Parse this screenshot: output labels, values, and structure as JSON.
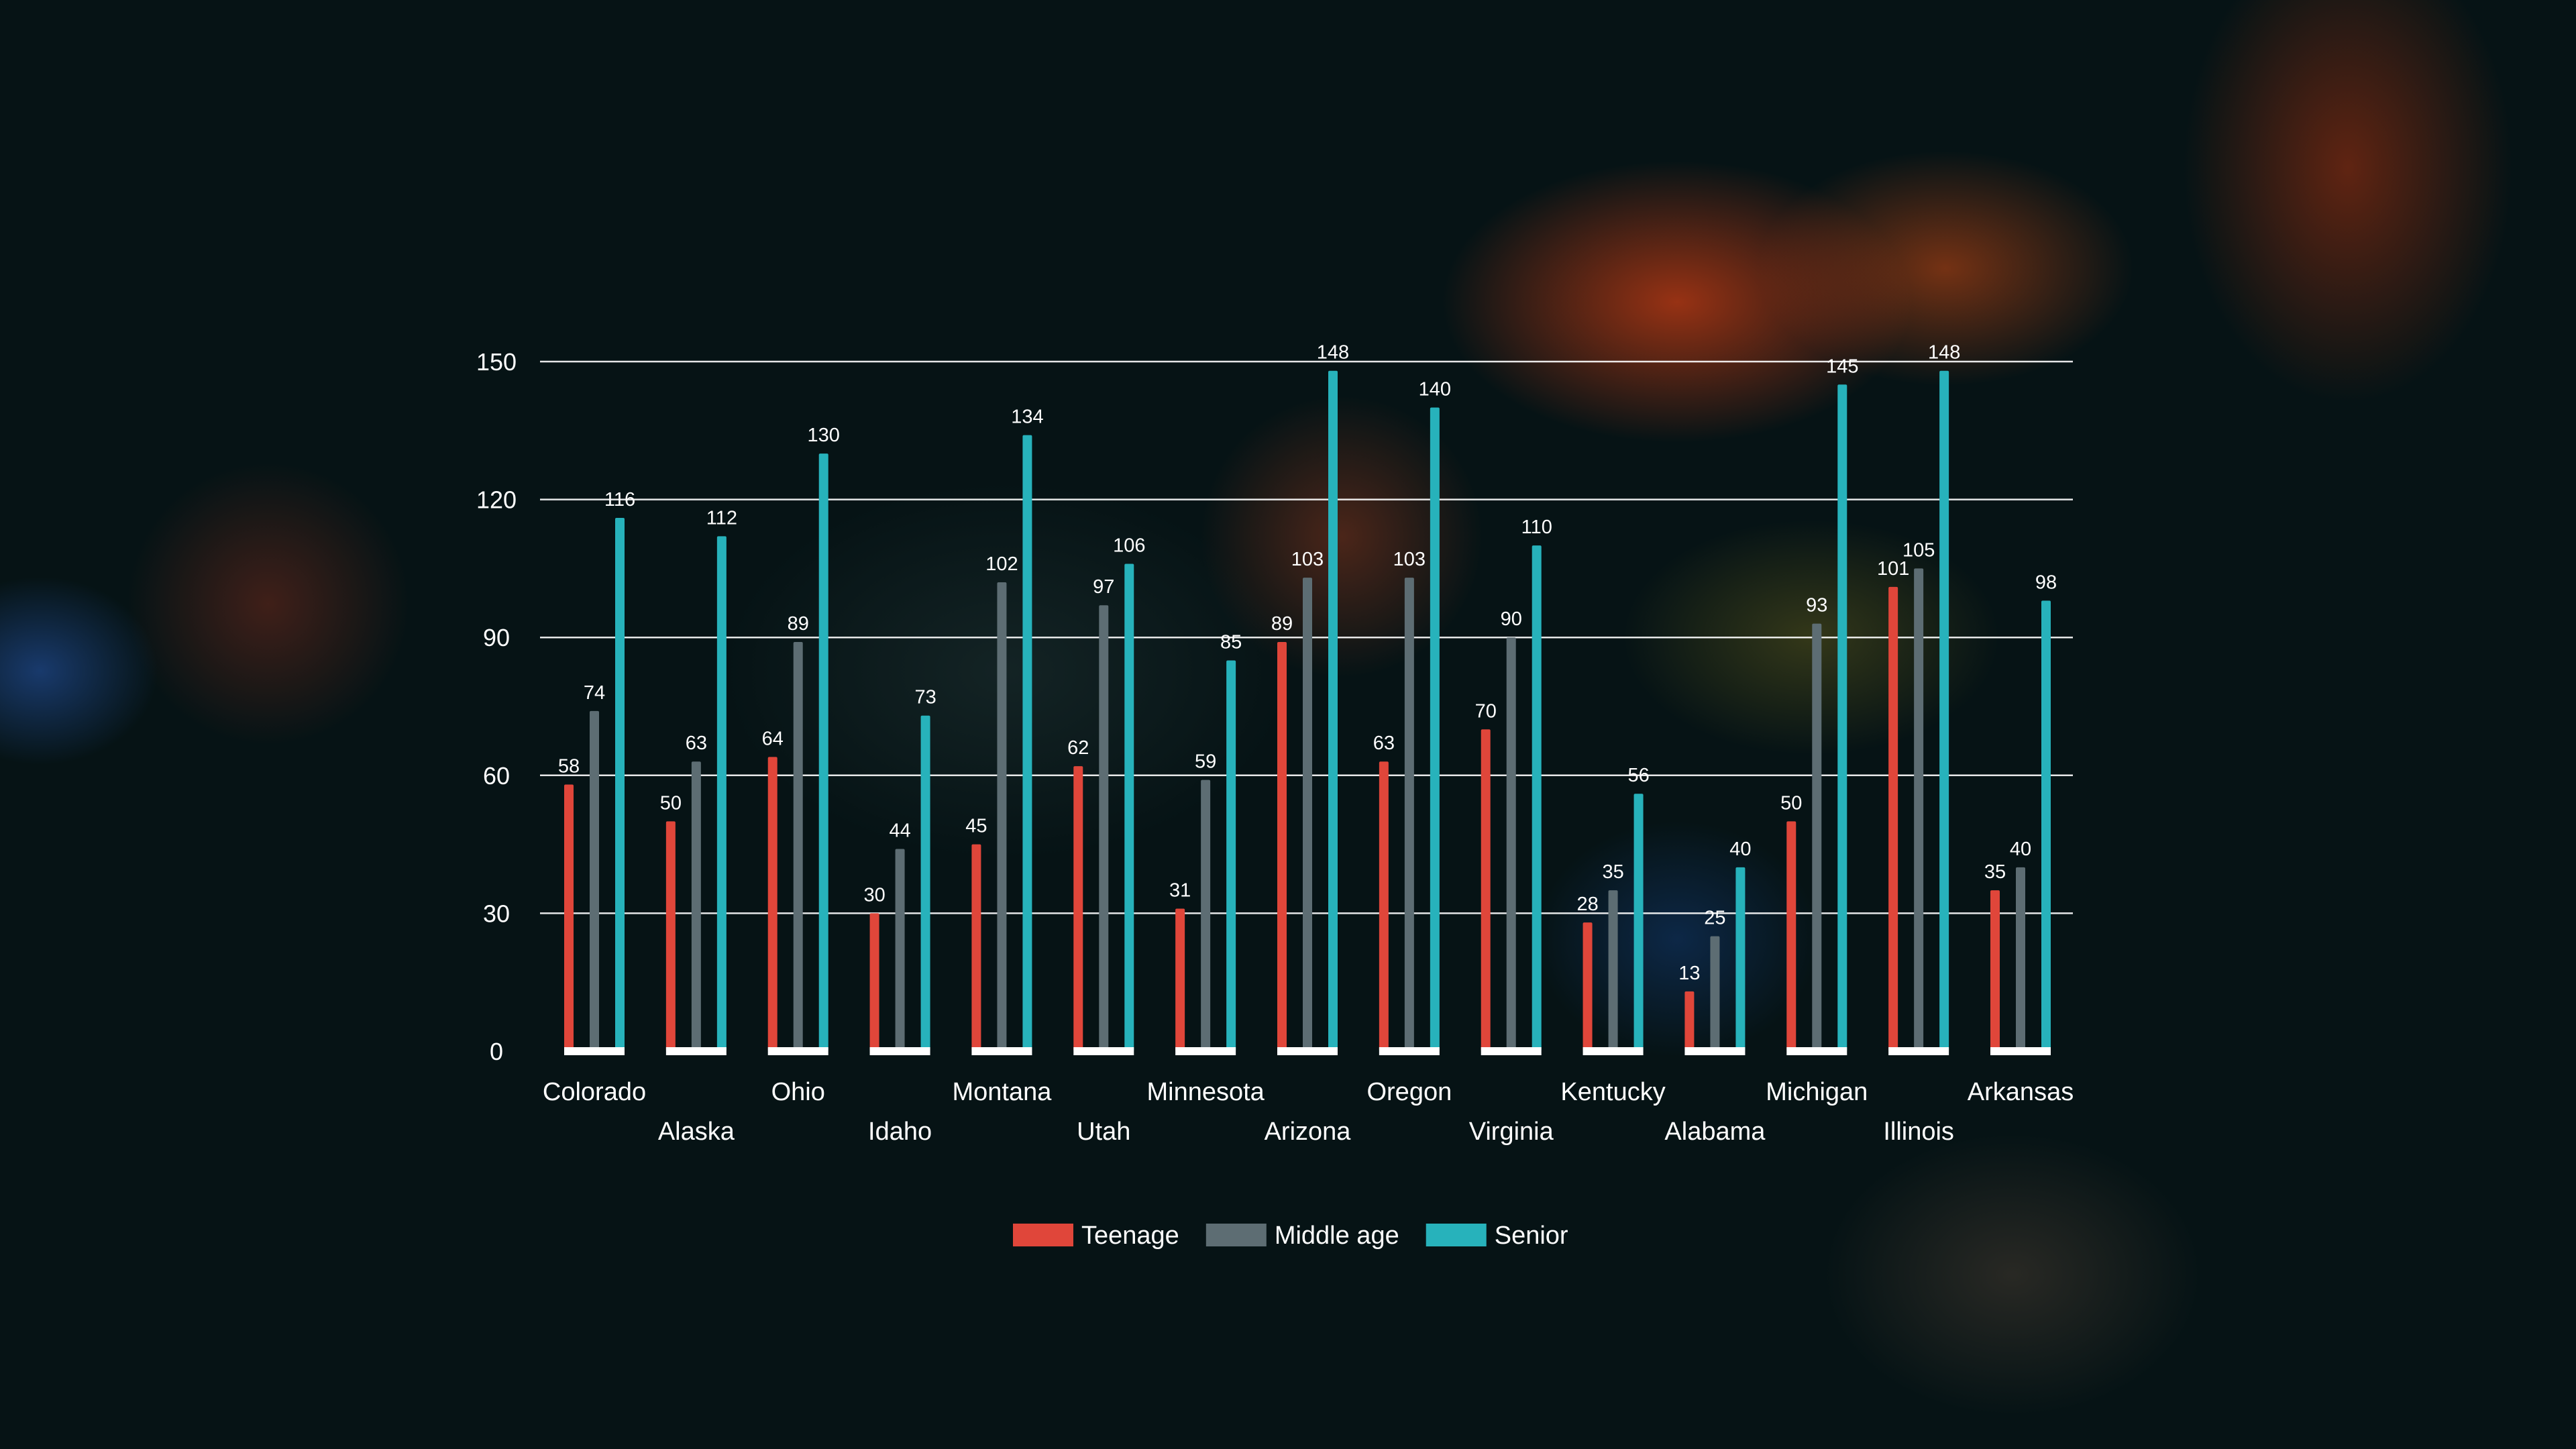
{
  "chart_data": {
    "type": "bar",
    "categories": [
      "Colorado",
      "Alaska",
      "Ohio",
      "Idaho",
      "Montana",
      "Utah",
      "Minnesota",
      "Arizona",
      "Oregon",
      "Virginia",
      "Kentucky",
      "Alabama",
      "Michigan",
      "Illinois",
      "Arkansas"
    ],
    "series": [
      {
        "name": "Teenage",
        "color": "#e0463a",
        "values": [
          58,
          50,
          64,
          30,
          45,
          62,
          31,
          89,
          63,
          70,
          28,
          13,
          50,
          101,
          35
        ]
      },
      {
        "name": "Middle age",
        "color": "#5d6d73",
        "values": [
          74,
          63,
          89,
          44,
          102,
          97,
          59,
          103,
          103,
          90,
          35,
          25,
          93,
          105,
          40
        ]
      },
      {
        "name": "Senior",
        "color": "#27b2bb",
        "values": [
          116,
          112,
          130,
          73,
          134,
          106,
          85,
          148,
          140,
          110,
          56,
          40,
          145,
          148,
          98
        ]
      }
    ],
    "yticks": [
      0,
      30,
      60,
      90,
      120,
      150
    ],
    "ylim": [
      0,
      150
    ],
    "grid": true,
    "legend": "bottom-center",
    "title": "",
    "xlabel": "",
    "ylabel": ""
  }
}
